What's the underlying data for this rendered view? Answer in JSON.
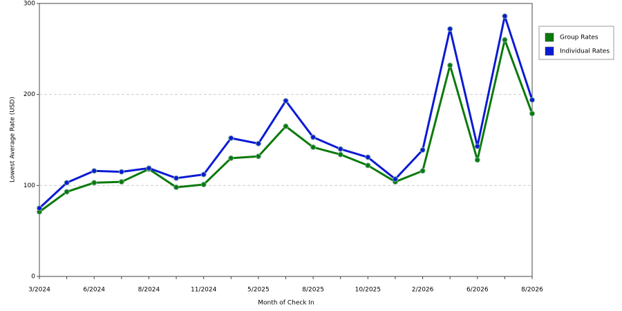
{
  "chart_data": {
    "type": "line",
    "x_label": "Month of Check In",
    "y_label": "Lowest Average Rate (USD)",
    "categories": [
      "3/2024",
      null,
      "6/2024",
      null,
      "8/2024",
      null,
      "11/2024",
      null,
      "5/2025",
      null,
      "8/2025",
      null,
      "10/2025",
      null,
      "2/2026",
      null,
      "6/2026",
      null,
      "8/2026"
    ],
    "series": [
      {
        "name": "Group Rates",
        "color": "#0a7a0a",
        "values": [
          71,
          93,
          103,
          104,
          118,
          98,
          101,
          130,
          132,
          165,
          142,
          134,
          122,
          104,
          116,
          232,
          128,
          260,
          179
        ]
      },
      {
        "name": "Individual Rates",
        "color": "#0a1ad4",
        "values": [
          75,
          103,
          116,
          115,
          119,
          108,
          112,
          152,
          146,
          193,
          153,
          140,
          131,
          107,
          139,
          272,
          143,
          286,
          194
        ]
      }
    ],
    "ylim": [
      0,
      300
    ],
    "yticks": [
      0,
      100,
      200,
      300
    ],
    "grid": true,
    "legend": "right"
  }
}
